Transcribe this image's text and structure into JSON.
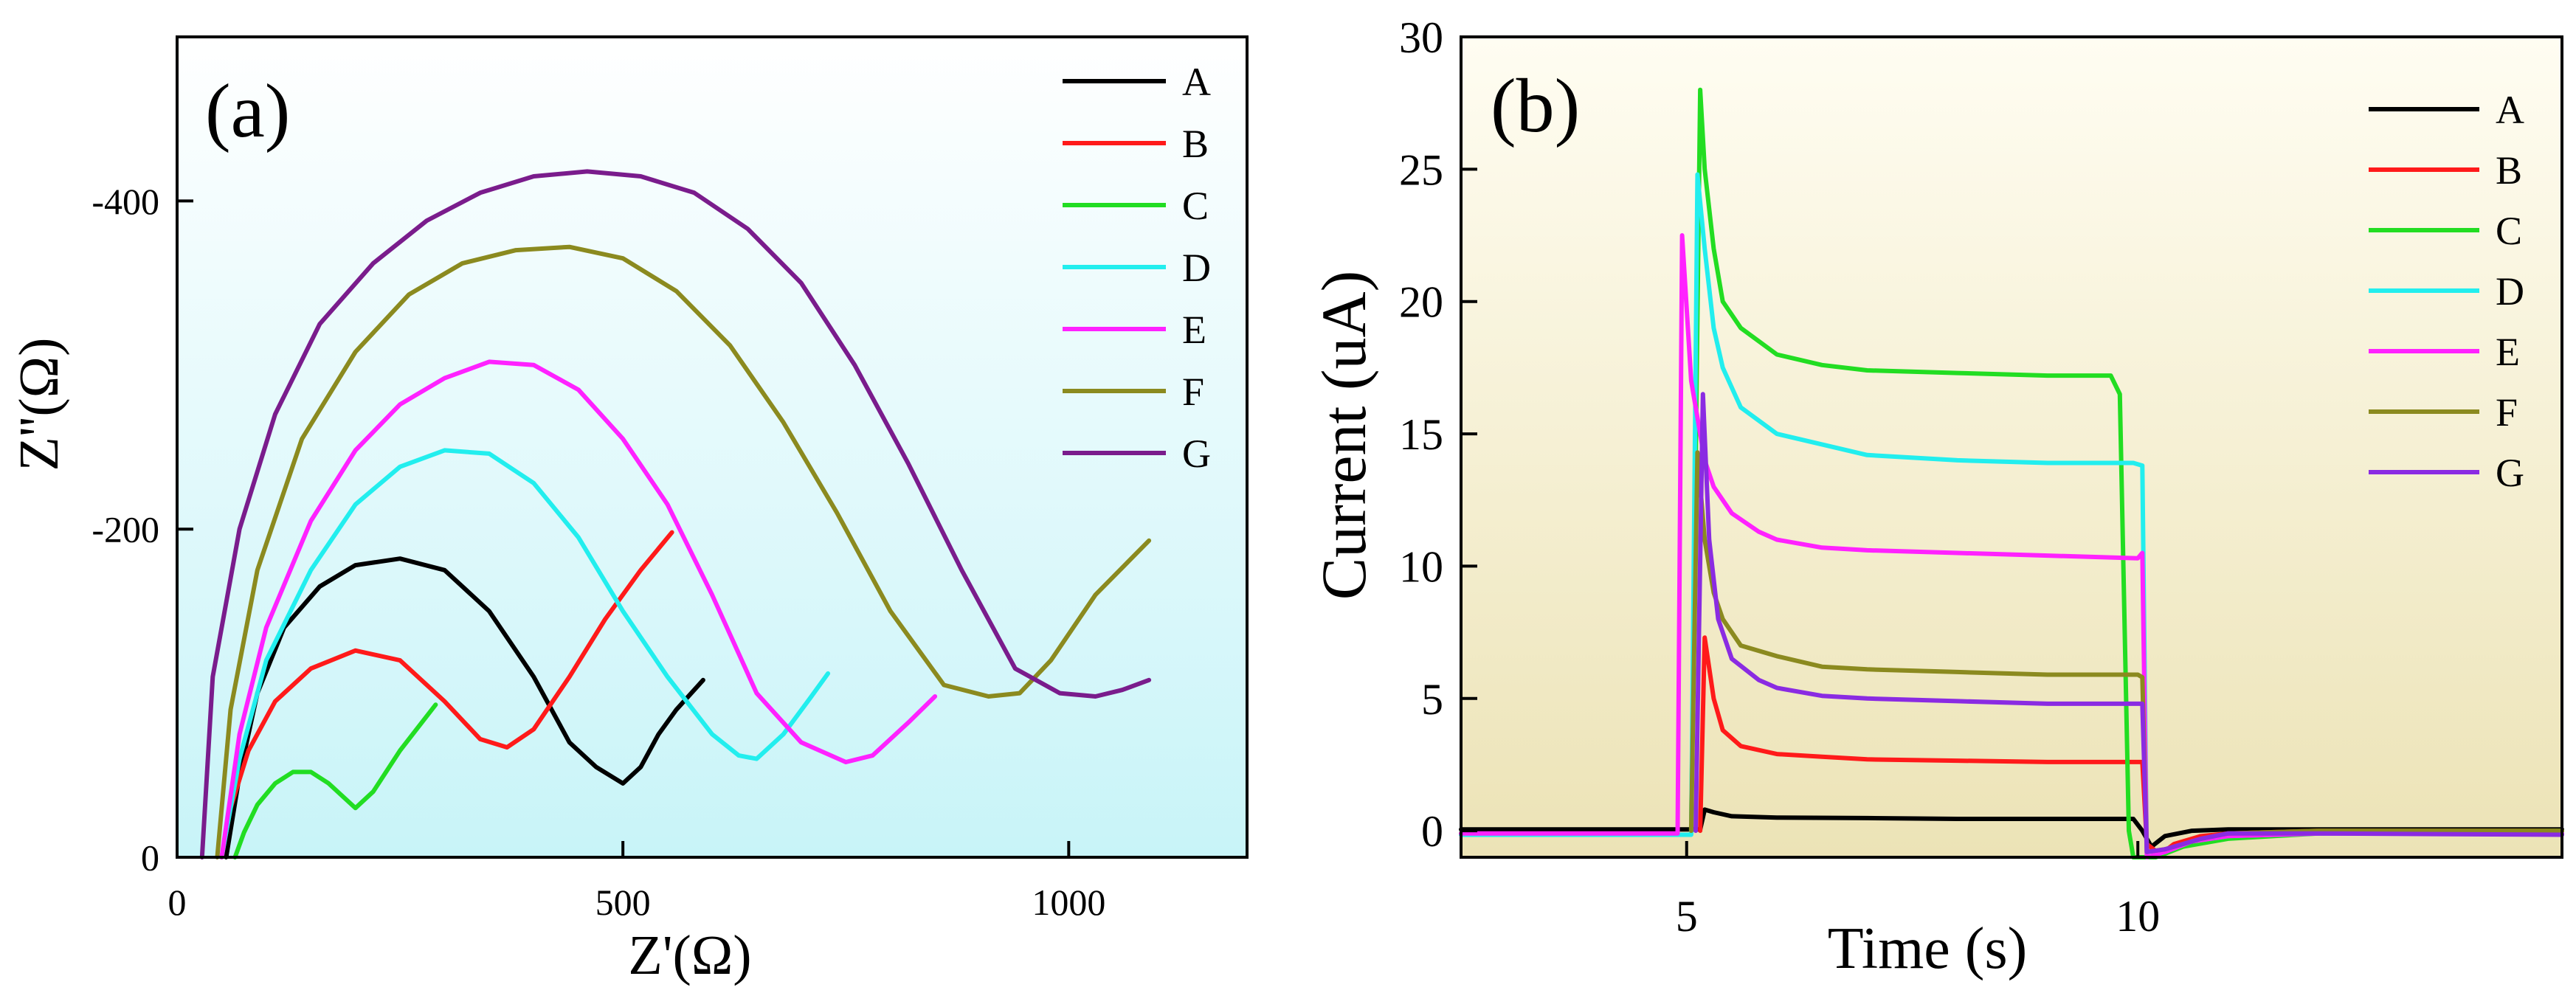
{
  "chart_data": [
    {
      "panel_label": "(a)",
      "type": "line",
      "xlabel": "Z'(Ω)",
      "ylabel": "Z''(Ω)",
      "xlim": [
        0,
        1200
      ],
      "ylim": [
        0,
        -500
      ],
      "xticks": [
        0,
        500,
        1000
      ],
      "xtick_labels": [
        "0",
        "500",
        "1000"
      ],
      "yticks": [
        0,
        -200,
        -400
      ],
      "ytick_labels": [
        "0",
        "-200",
        "-400"
      ],
      "legend_position": "top-right",
      "background": "gradient white to light cyan",
      "series": [
        {
          "name": "A",
          "color": "#000000",
          "x": [
            55,
            70,
            90,
            120,
            160,
            200,
            250,
            300,
            350,
            400,
            440,
            470,
            500,
            520,
            540,
            560,
            590
          ],
          "y": [
            0,
            -50,
            -100,
            -140,
            -165,
            -178,
            -182,
            -175,
            -150,
            -110,
            -70,
            -55,
            -45,
            -55,
            -75,
            -90,
            -108
          ]
        },
        {
          "name": "B",
          "color": "#ff1a1a",
          "x": [
            50,
            60,
            80,
            110,
            150,
            200,
            250,
            300,
            340,
            370,
            400,
            440,
            480,
            520,
            555
          ],
          "y": [
            0,
            -30,
            -65,
            -95,
            -115,
            -126,
            -120,
            -95,
            -72,
            -67,
            -78,
            -110,
            -145,
            -175,
            -198
          ]
        },
        {
          "name": "C",
          "color": "#22dd22",
          "x": [
            65,
            75,
            90,
            110,
            130,
            150,
            170,
            190,
            200,
            220,
            250,
            290
          ],
          "y": [
            0,
            -15,
            -32,
            -45,
            -52,
            -52,
            -45,
            -35,
            -30,
            -40,
            -65,
            -93
          ]
        },
        {
          "name": "D",
          "color": "#22eeee",
          "x": [
            50,
            70,
            100,
            150,
            200,
            250,
            300,
            350,
            400,
            450,
            500,
            550,
            600,
            630,
            650,
            680,
            710,
            730
          ],
          "y": [
            0,
            -60,
            -120,
            -175,
            -215,
            -238,
            -248,
            -246,
            -228,
            -195,
            -150,
            -110,
            -75,
            -62,
            -60,
            -75,
            -97,
            -112
          ]
        },
        {
          "name": "E",
          "color": "#ff22ff",
          "x": [
            50,
            70,
            100,
            150,
            200,
            250,
            300,
            350,
            400,
            450,
            500,
            550,
            600,
            650,
            700,
            750,
            780,
            820,
            850
          ],
          "y": [
            0,
            -75,
            -140,
            -205,
            -248,
            -276,
            -292,
            -302,
            -300,
            -285,
            -255,
            -215,
            -160,
            -100,
            -70,
            -58,
            -62,
            -82,
            -98
          ]
        },
        {
          "name": "F",
          "color": "#8b8a1f",
          "x": [
            45,
            60,
            90,
            140,
            200,
            260,
            320,
            380,
            440,
            500,
            560,
            620,
            680,
            740,
            800,
            860,
            910,
            945,
            980,
            1030,
            1090
          ],
          "y": [
            0,
            -90,
            -175,
            -255,
            -308,
            -343,
            -362,
            -370,
            -372,
            -365,
            -345,
            -312,
            -265,
            -210,
            -150,
            -105,
            -98,
            -100,
            -120,
            -160,
            -193
          ]
        },
        {
          "name": "G",
          "color": "#7a1c8c",
          "x": [
            28,
            40,
            70,
            110,
            160,
            220,
            280,
            340,
            400,
            460,
            520,
            580,
            640,
            700,
            760,
            820,
            880,
            940,
            990,
            1030,
            1060,
            1090
          ],
          "y": [
            0,
            -110,
            -200,
            -270,
            -325,
            -362,
            -388,
            -405,
            -415,
            -418,
            -415,
            -405,
            -383,
            -350,
            -300,
            -240,
            -175,
            -115,
            -100,
            -98,
            -102,
            -108
          ]
        }
      ]
    },
    {
      "panel_label": "(b)",
      "type": "line",
      "xlabel": "Time (s)",
      "ylabel": "Current (uA)",
      "xlim": [
        2.5,
        14.7
      ],
      "ylim": [
        -1,
        30
      ],
      "xticks": [
        5,
        10
      ],
      "xtick_labels": [
        "5",
        "10"
      ],
      "yticks": [
        0,
        5,
        10,
        15,
        20,
        25,
        30
      ],
      "ytick_labels": [
        "0",
        "5",
        "10",
        "15",
        "20",
        "25",
        "30"
      ],
      "legend_position": "top-right",
      "background": "gradient light yellow to tan",
      "series": [
        {
          "name": "A",
          "color": "#000000",
          "x": [
            2.5,
            5.15,
            5.2,
            5.3,
            5.5,
            6,
            7,
            8,
            9,
            9.95,
            10.05,
            10.15,
            10.3,
            10.6,
            11,
            12,
            13,
            14.7
          ],
          "y": [
            0.05,
            0.05,
            0.8,
            0.7,
            0.55,
            0.5,
            0.48,
            0.45,
            0.45,
            0.45,
            0,
            -0.6,
            -0.2,
            0,
            0.05,
            0.05,
            0.05,
            0.05
          ]
        },
        {
          "name": "B",
          "color": "#ff1a1a",
          "x": [
            5.15,
            5.2,
            5.3,
            5.4,
            5.6,
            6,
            6.5,
            7,
            8,
            9,
            10.05,
            10.1,
            10.25,
            10.4,
            10.7,
            11,
            12,
            14.7
          ],
          "y": [
            0,
            7.3,
            5,
            3.8,
            3.2,
            2.9,
            2.8,
            2.7,
            2.65,
            2.6,
            2.6,
            -0.5,
            -0.9,
            -0.5,
            -0.2,
            -0.1,
            0,
            0
          ]
        },
        {
          "name": "C",
          "color": "#22dd22",
          "x": [
            5.05,
            5.15,
            5.2,
            5.3,
            5.4,
            5.6,
            6,
            6.5,
            7,
            8,
            9,
            9.7,
            9.8,
            9.9,
            9.95,
            10.2,
            10.5,
            11,
            12,
            14.7
          ],
          "y": [
            0,
            28,
            25,
            22,
            20,
            19,
            18,
            17.6,
            17.4,
            17.3,
            17.2,
            17.2,
            16.5,
            0,
            -1,
            -1,
            -0.6,
            -0.3,
            -0.1,
            0
          ]
        },
        {
          "name": "D",
          "color": "#22eeee",
          "x": [
            2.5,
            5.05,
            5.12,
            5.2,
            5.3,
            5.4,
            5.6,
            6,
            6.5,
            7,
            8,
            9,
            9.9,
            9.95,
            10.05,
            10.1,
            10.3,
            10.6,
            11,
            12,
            14.7
          ],
          "y": [
            -0.15,
            -0.15,
            24.8,
            22,
            19,
            17.5,
            16,
            15,
            14.6,
            14.2,
            14,
            13.9,
            13.9,
            13.9,
            13.8,
            -1,
            -0.8,
            -0.4,
            -0.2,
            -0.1,
            -0.1
          ]
        },
        {
          "name": "E",
          "color": "#ff22ff",
          "x": [
            2.5,
            4.9,
            4.95,
            5.05,
            5.2,
            5.3,
            5.5,
            5.8,
            6,
            6.5,
            7,
            8,
            9,
            10,
            10.05,
            10.1,
            10.3,
            10.6,
            11,
            12,
            14.7
          ],
          "y": [
            -0.1,
            -0.1,
            22.5,
            17,
            14,
            13,
            12,
            11.3,
            11,
            10.7,
            10.6,
            10.5,
            10.4,
            10.3,
            10.5,
            -1,
            -0.8,
            -0.4,
            -0.2,
            -0.1,
            -0.1
          ]
        },
        {
          "name": "F",
          "color": "#8b8a1f",
          "x": [
            5.05,
            5.12,
            5.2,
            5.3,
            5.4,
            5.6,
            6,
            6.5,
            7,
            8,
            9,
            10,
            10.05,
            10.1,
            10.3,
            10.7,
            11,
            12,
            14.7
          ],
          "y": [
            0,
            14.3,
            11,
            9,
            8,
            7,
            6.6,
            6.2,
            6.1,
            6,
            5.9,
            5.9,
            5.8,
            -0.8,
            -0.7,
            -0.3,
            -0.1,
            0,
            0
          ]
        },
        {
          "name": "G",
          "color": "#8a2be2",
          "x": [
            5.1,
            5.18,
            5.25,
            5.35,
            5.5,
            5.8,
            6,
            6.5,
            7,
            8,
            9,
            10,
            10.05,
            10.1,
            10.3,
            10.7,
            11,
            12,
            14.7
          ],
          "y": [
            0,
            16.5,
            11,
            8,
            6.5,
            5.7,
            5.4,
            5.1,
            5,
            4.9,
            4.8,
            4.8,
            4.8,
            -0.8,
            -0.7,
            -0.3,
            -0.1,
            -0.1,
            -0.15
          ]
        }
      ]
    }
  ]
}
